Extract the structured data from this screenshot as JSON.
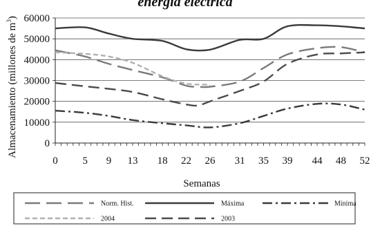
{
  "chart_data": {
    "type": "line",
    "title": "energia eléctrica",
    "xlabel": "Semanas",
    "ylabel": "Almacenamiento (millones de m³)",
    "ylabel_main": "Almacenamiento (millones de m",
    "ylabel_sup": "3",
    "ylabel_close": ")",
    "ylim": [
      0,
      60000
    ],
    "yticks": [
      "0",
      "10000",
      "20000",
      "30000",
      "40000",
      "50000",
      "60000"
    ],
    "xlim": [
      0,
      52
    ],
    "xticks": [
      "0",
      "5",
      "9",
      "13",
      "18",
      "22",
      "26",
      "31",
      "35",
      "39",
      "44",
      "48",
      "52"
    ],
    "grid": true,
    "legend_position": "bottom",
    "series": [
      {
        "name": "Norm. Hist.",
        "color": "#7a7a7a",
        "dash": "long",
        "x": [
          0,
          5,
          9,
          13,
          18,
          22,
          24,
          26,
          31,
          35,
          39,
          44,
          48,
          52
        ],
        "y": [
          44500,
          41500,
          38000,
          35000,
          31500,
          27500,
          27000,
          27000,
          29500,
          36000,
          42500,
          45500,
          46000,
          43500
        ]
      },
      {
        "name": "Máxima",
        "color": "#3a3a3a",
        "dash": "solid",
        "x": [
          0,
          5,
          9,
          13,
          18,
          22,
          26,
          31,
          35,
          39,
          44,
          48,
          52
        ],
        "y": [
          55000,
          55500,
          52500,
          50000,
          49000,
          45000,
          44800,
          49500,
          50000,
          56000,
          56500,
          56000,
          55000
        ]
      },
      {
        "name": "Mínima",
        "color": "#3a3a3a",
        "dash": "dashdot",
        "x": [
          0,
          5,
          9,
          13,
          18,
          22,
          26,
          31,
          35,
          39,
          44,
          48,
          52
        ],
        "y": [
          15500,
          14500,
          13000,
          11000,
          9500,
          8500,
          7500,
          9500,
          13000,
          16500,
          18800,
          18500,
          16000
        ]
      },
      {
        "name": "2004",
        "color": "#b0b0b0",
        "dash": "short",
        "x": [
          0,
          5,
          9,
          13,
          18,
          22,
          26
        ],
        "y": [
          43500,
          42800,
          41500,
          38500,
          32000,
          28500,
          28000
        ]
      },
      {
        "name": "2003",
        "color": "#4a4a4a",
        "dash": "medium",
        "x": [
          0,
          5,
          9,
          13,
          18,
          22,
          24,
          26,
          31,
          35,
          39,
          44,
          48,
          52
        ],
        "y": [
          28800,
          27200,
          26000,
          24500,
          21000,
          18500,
          18000,
          20000,
          25000,
          29500,
          38000,
          42500,
          43000,
          43500
        ]
      }
    ]
  }
}
